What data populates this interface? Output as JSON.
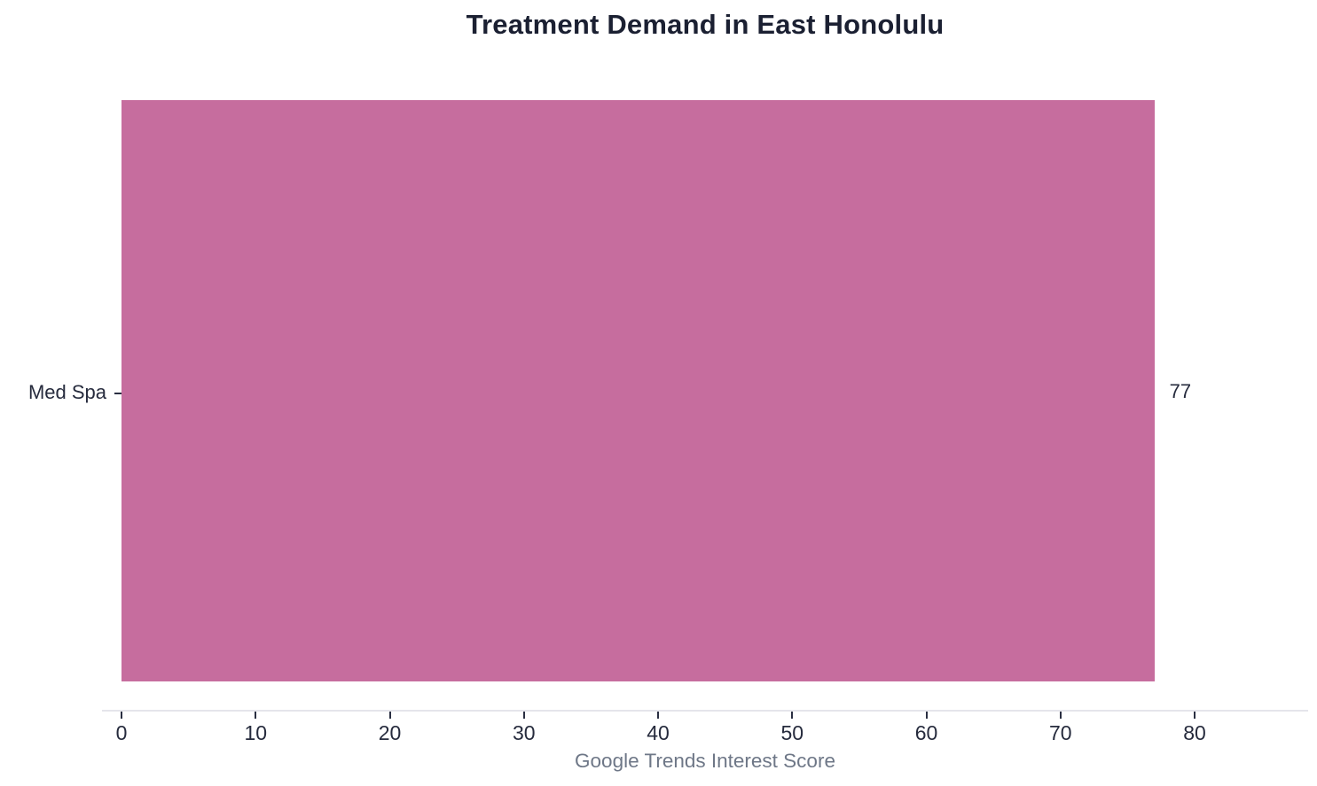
{
  "chart_data": {
    "type": "bar",
    "orientation": "horizontal",
    "title": "Treatment Demand in East Honolulu",
    "categories": [
      "Med Spa"
    ],
    "values": [
      77
    ],
    "value_labels": [
      "77"
    ],
    "xlabel": "Google Trends Interest Score",
    "ylabel": "",
    "xlim": [
      0,
      88.5
    ],
    "xticks": [
      0,
      10,
      20,
      30,
      40,
      50,
      60,
      70,
      80
    ],
    "grid": false,
    "legend": null,
    "bar_color": "#c66d9e",
    "title_color": "#1b2032",
    "tick_label_color": "#262b3d",
    "axis_label_color": "#6e7787",
    "axis_spine_color": "#e5e5eb"
  }
}
